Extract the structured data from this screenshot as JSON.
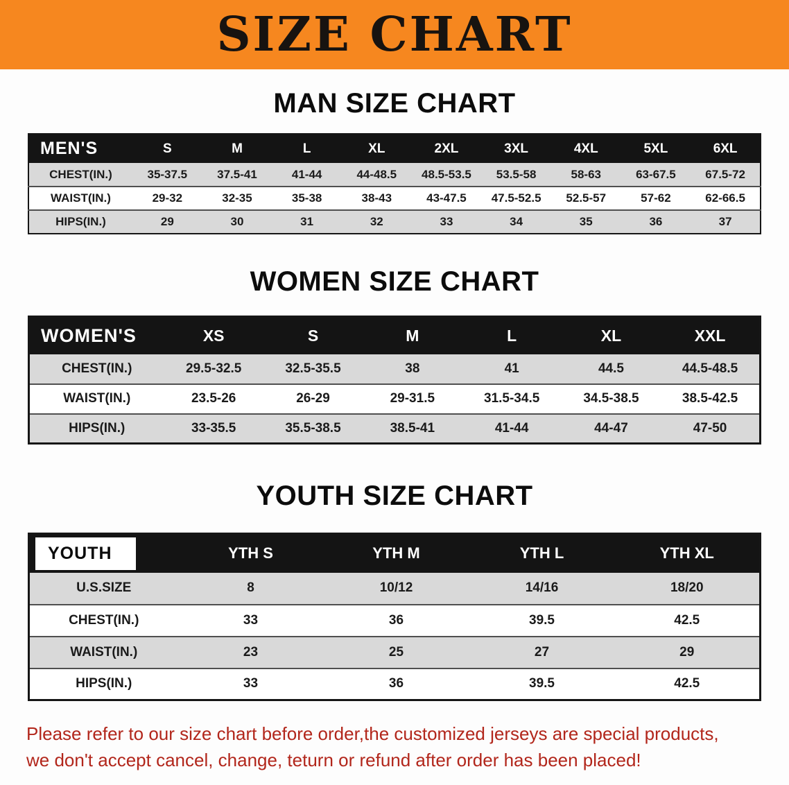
{
  "banner": {
    "title": "SIZE CHART"
  },
  "colors": {
    "banner-bg": "#f6871f",
    "header-bg": "#141414",
    "row-stripe": "#d9d9d9",
    "disclaimer-red": "#b2261b"
  },
  "sections": [
    {
      "id": "men",
      "heading": "MAN SIZE CHART",
      "table": {
        "header_label": "MEN'S",
        "columns": [
          "S",
          "M",
          "L",
          "XL",
          "2XL",
          "3XL",
          "4XL",
          "5XL",
          "6XL"
        ],
        "rows": [
          {
            "label": "CHEST(IN.)",
            "values": [
              "35-37.5",
              "37.5-41",
              "41-44",
              "44-48.5",
              "48.5-53.5",
              "53.5-58",
              "58-63",
              "63-67.5",
              "67.5-72"
            ]
          },
          {
            "label": "WAIST(IN.)",
            "values": [
              "29-32",
              "32-35",
              "35-38",
              "38-43",
              "43-47.5",
              "47.5-52.5",
              "52.5-57",
              "57-62",
              "62-66.5"
            ]
          },
          {
            "label": "HIPS(IN.)",
            "values": [
              "29",
              "30",
              "31",
              "32",
              "33",
              "34",
              "35",
              "36",
              "37"
            ]
          }
        ]
      }
    },
    {
      "id": "women",
      "heading": "WOMEN SIZE CHART",
      "table": {
        "header_label": "WOMEN'S",
        "columns": [
          "XS",
          "S",
          "M",
          "L",
          "XL",
          "XXL"
        ],
        "rows": [
          {
            "label": "CHEST(IN.)",
            "values": [
              "29.5-32.5",
              "32.5-35.5",
              "38",
              "41",
              "44.5",
              "44.5-48.5"
            ]
          },
          {
            "label": "WAIST(IN.)",
            "values": [
              "23.5-26",
              "26-29",
              "29-31.5",
              "31.5-34.5",
              "34.5-38.5",
              "38.5-42.5"
            ]
          },
          {
            "label": "HIPS(IN.)",
            "values": [
              "33-35.5",
              "35.5-38.5",
              "38.5-41",
              "41-44",
              "44-47",
              "47-50"
            ]
          }
        ]
      }
    },
    {
      "id": "youth",
      "heading": "YOUTH SIZE CHART",
      "table": {
        "header_label": "YOUTH",
        "columns": [
          "YTH S",
          "YTH M",
          "YTH L",
          "YTH XL"
        ],
        "rows": [
          {
            "label": "U.S.SIZE",
            "values": [
              "8",
              "10/12",
              "14/16",
              "18/20"
            ]
          },
          {
            "label": "CHEST(IN.)",
            "values": [
              "33",
              "36",
              "39.5",
              "42.5"
            ]
          },
          {
            "label": "WAIST(IN.)",
            "values": [
              "23",
              "25",
              "27",
              "29"
            ]
          },
          {
            "label": "HIPS(IN.)",
            "values": [
              "33",
              "36",
              "39.5",
              "42.5"
            ]
          }
        ]
      }
    }
  ],
  "disclaimer": {
    "line1": "Please refer to our size chart before order,the customized jerseys are special products,",
    "line2": "we don't accept cancel, change, teturn or refund after order has been placed!"
  }
}
